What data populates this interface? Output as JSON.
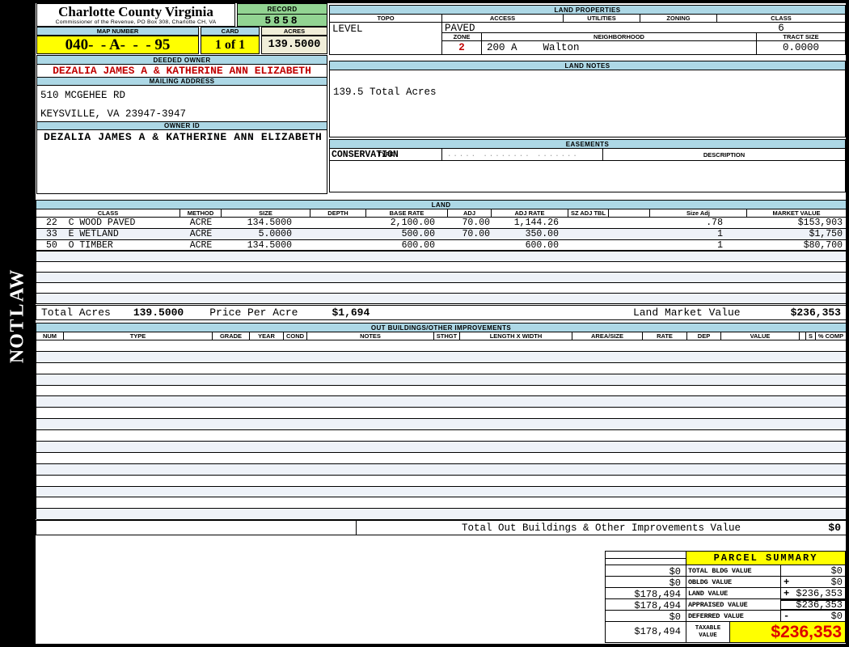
{
  "header": {
    "title": "Charlotte County Virginia",
    "subtitle": "Commissioner of the Revenue, PO Box 308, Charlotte CH, VA",
    "record_label": "RECORD",
    "record_value": "5858",
    "map_number_label": "MAP NUMBER",
    "map_number_value": "040-  - A-  -  - 95",
    "card_label": "CARD",
    "card_value": "1 of 1",
    "acres_label": "ACRES",
    "acres_value": "139.5000"
  },
  "owner": {
    "deeded_owner_label": "DEEDED OWNER",
    "deeded_owner": "DEZALIA JAMES A & KATHERINE ANN ELIZABETH",
    "mailing_address_label": "MAILING ADDRESS",
    "address_line1": "510 MCGEHEE RD",
    "address_line2": "KEYSVILLE, VA 23947-3947",
    "owner_id_label": "OWNER ID",
    "owner_id": "DEZALIA JAMES A & KATHERINE ANN ELIZABETH"
  },
  "land_properties": {
    "section_label": "LAND PROPERTIES",
    "topo_label": "TOPO",
    "topo_value": "LEVEL",
    "access_label": "ACCESS",
    "access_value": "PAVED",
    "utilities_label": "UTILITIES",
    "utilities_value": "",
    "zoning_label": "ZONING",
    "zoning_value": "",
    "class_label": "CLASS",
    "class_value": "6",
    "zone_label": "ZONE",
    "zone_value": "2",
    "neighborhood_label": "NEIGHBORHOOD",
    "neighborhood_code": "200 A",
    "neighborhood_name": "Walton",
    "tract_size_label": "TRACT SIZE",
    "tract_size_value": "0.0000"
  },
  "land_notes": {
    "section_label": "LAND NOTES",
    "note": "139.5 Total Acres"
  },
  "easements": {
    "section_label": "EASEMENTS",
    "type_label": "TYPE",
    "type_value": "CONSERVATION",
    "placeholder_dots": "..... ........ .......",
    "description_label": "DESCRIPTION"
  },
  "land": {
    "section_label": "LAND",
    "columns": [
      "CLASS",
      "METHOD",
      "SIZE",
      "DEPTH",
      "BASE RATE",
      "ADJ",
      "ADJ RATE",
      "SZ ADJ TBL",
      "",
      "Size Adj",
      "MARKET VALUE"
    ],
    "rows": [
      {
        "class": "22  C WOOD PAVED",
        "method": "ACRE",
        "size": "134.5000",
        "depth": "",
        "base_rate": "2,100.00",
        "adj": "70.00",
        "adj_rate": "1,144.26",
        "sz_adj_tbl": "",
        "size_adj": ".78",
        "market_value": "$153,903"
      },
      {
        "class": "33  E WETLAND",
        "method": "ACRE",
        "size": "5.0000",
        "depth": "",
        "base_rate": "500.00",
        "adj": "70.00",
        "adj_rate": "350.00",
        "sz_adj_tbl": "",
        "size_adj": "1",
        "market_value": "$1,750"
      },
      {
        "class": "50  O TIMBER",
        "method": "ACRE",
        "size": "134.5000",
        "depth": "",
        "base_rate": "600.00",
        "adj": "",
        "adj_rate": "600.00",
        "sz_adj_tbl": "",
        "size_adj": "1",
        "market_value": "$80,700"
      }
    ],
    "total_acres_label": "Total Acres",
    "total_acres": "139.5000",
    "price_per_acre_label": "Price Per Acre",
    "price_per_acre": "$1,694",
    "land_market_value_label": "Land Market Value",
    "land_market_value": "$236,353"
  },
  "out_buildings": {
    "section_label": "OUT BUILDINGS/OTHER IMPROVEMENTS",
    "columns": [
      "NUM",
      "TYPE",
      "GRADE",
      "YEAR",
      "COND",
      "NOTES",
      "STHGT",
      "LENGTH X WIDTH",
      "AREA/SIZE",
      "RATE",
      "DEP",
      "VALUE",
      "",
      "S",
      "% COMP"
    ],
    "total_label": "Total Out Buildings & Other Improvements Value",
    "total_value": "$0"
  },
  "parcel_summary": {
    "title": "PARCEL SUMMARY",
    "rows": [
      {
        "left": "$0",
        "label": "TOTAL BLDG VALUE",
        "sign": "",
        "value": "$0"
      },
      {
        "left": "$0",
        "label": "OBLDG VALUE",
        "sign": "+",
        "value": "$0"
      },
      {
        "left": "$178,494",
        "label": "LAND VALUE",
        "sign": "+",
        "value": "$236,353"
      },
      {
        "left": "$178,494",
        "label": "APPRAISED VALUE",
        "sign": "",
        "value": "$236,353"
      },
      {
        "left": "$0",
        "label": "DEFERRED VALUE",
        "sign": "-",
        "value": "$0"
      }
    ],
    "taxable_left": "$178,494",
    "taxable_label": "TAXABLE VALUE",
    "taxable_value": "$236,353"
  },
  "sidebar": {
    "vertical_text": "WALTON"
  },
  "colors": {
    "header_bar_blue": "#ADD8E6",
    "record_green": "#92D492",
    "highlight_yellow": "#FFFF00",
    "acres_cream": "#F0EED8",
    "alt_row_blue": "#EEF2F8",
    "owner_red": "#C00000",
    "taxable_red": "#DD0000"
  }
}
